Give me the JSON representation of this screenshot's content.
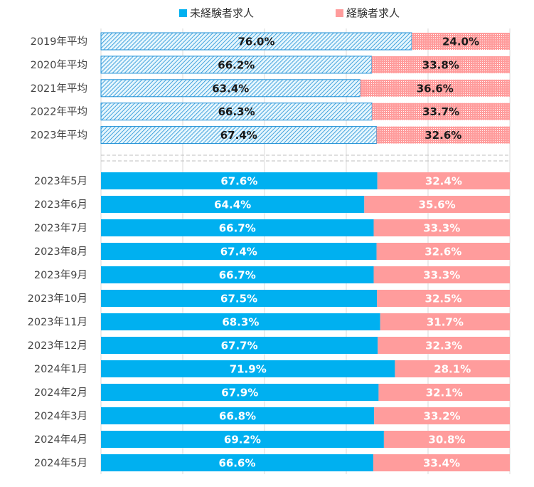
{
  "chart_data": {
    "type": "bar",
    "orientation": "horizontal",
    "stacked": true,
    "percent_stacked": true,
    "legend": {
      "position": "top",
      "items": [
        "未経験者求人",
        "経験者求人"
      ]
    },
    "colors": {
      "inexperienced": "#00b0f0",
      "experienced": "#ff9c9c",
      "hatch_stroke_inexperienced": "#1c8fd6",
      "hatch_dots_experienced": "#ffffff",
      "grid": "#d9d9d9",
      "separator": "#bfbfbf"
    },
    "categories_annual": [
      "2019年平均",
      "2020年平均",
      "2021年平均",
      "2022年平均",
      "2023年平均"
    ],
    "categories_monthly": [
      "2023年5月",
      "2023年6月",
      "2023年7月",
      "2023年8月",
      "2023年9月",
      "2023年10月",
      "2023年11月",
      "2023年12月",
      "2024年1月",
      "2024年2月",
      "2024年3月",
      "2024年4月",
      "2024年5月"
    ],
    "series": [
      {
        "name": "未経験者求人",
        "annual_values": [
          76.0,
          66.2,
          63.4,
          66.3,
          67.4
        ],
        "monthly_values": [
          67.6,
          64.4,
          66.7,
          67.4,
          66.7,
          67.5,
          68.3,
          67.7,
          71.9,
          67.9,
          66.8,
          69.2,
          66.6
        ]
      },
      {
        "name": "経験者求人",
        "annual_values": [
          24.0,
          33.8,
          36.6,
          33.7,
          32.6
        ],
        "monthly_values": [
          32.4,
          35.6,
          33.3,
          32.6,
          33.3,
          32.5,
          31.7,
          32.3,
          28.1,
          32.1,
          33.2,
          30.8,
          33.4
        ]
      }
    ],
    "value_format": "0.0%",
    "xlim": [
      0,
      100
    ],
    "grid": true
  }
}
